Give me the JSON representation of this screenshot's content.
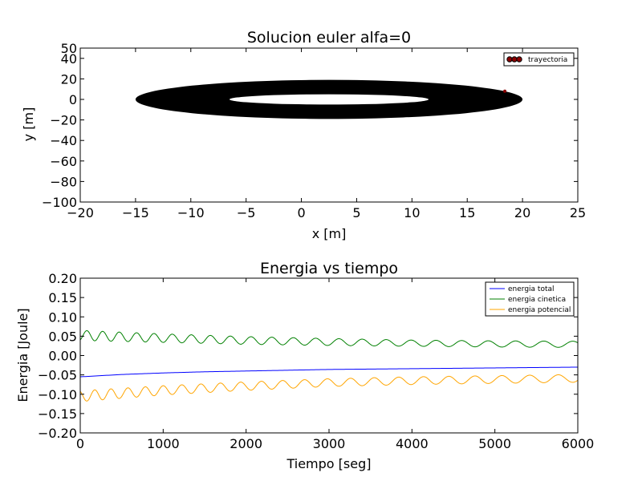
{
  "chart_data": [
    {
      "type": "scatter",
      "title": "Solucion euler alfa=0",
      "xlabel": "x [m]",
      "ylabel": "y [m]",
      "xlim": [
        -20,
        25
      ],
      "ylim": [
        -100,
        50
      ],
      "xticks": [
        -20,
        -15,
        -10,
        -5,
        0,
        5,
        10,
        15,
        20,
        25
      ],
      "yticks": [
        50,
        40,
        20,
        0,
        -20,
        -40,
        -60,
        -80,
        -100
      ],
      "xtick_labels": [
        "−20",
        "−15",
        "−10",
        "−5",
        "0",
        "5",
        "10",
        "15",
        "20",
        "25"
      ],
      "ytick_labels": [
        "50",
        "40",
        "20",
        "0",
        "−20",
        "−40",
        "−60",
        "−80",
        "−100"
      ],
      "legend": {
        "position": "top-right",
        "entries": [
          "trayectoria"
        ]
      },
      "series": [
        {
          "name": "trayectoria",
          "color": "#000000",
          "marker_color": "#8b0000",
          "band": {
            "center_x": 2.5,
            "outer_half_width_x": 17.5,
            "outer_half_height_y": 19,
            "inner_half_width_x": 9,
            "inner_half_height_y": 5
          },
          "highlight_point": {
            "x": 18.4,
            "y": 8
          }
        }
      ]
    },
    {
      "type": "line",
      "title": "Energia vs tiempo",
      "xlabel": "Tiempo [seg]",
      "ylabel": "Energia [Joule]",
      "xlim": [
        0,
        6000
      ],
      "ylim": [
        -0.2,
        0.2
      ],
      "xticks": [
        0,
        1000,
        2000,
        3000,
        4000,
        5000,
        6000
      ],
      "yticks": [
        0.2,
        0.15,
        0.1,
        0.05,
        0,
        -0.05,
        -0.1,
        -0.15,
        -0.2
      ],
      "xtick_labels": [
        "0",
        "1000",
        "2000",
        "3000",
        "4000",
        "5000",
        "6000"
      ],
      "ytick_labels": [
        "0.20",
        "0.15",
        "0.10",
        "0.05",
        "0.00",
        "−0.05",
        "−0.10",
        "−0.15",
        "−0.20"
      ],
      "legend": {
        "position": "top-right",
        "entries": [
          "energia total",
          "energia cinetica",
          "energia potencial"
        ]
      },
      "series": [
        {
          "name": "energia total",
          "color": "#0000ff",
          "x": [
            0,
            500,
            1000,
            1500,
            2000,
            2500,
            3000,
            3500,
            4000,
            4500,
            5000,
            5500,
            6000
          ],
          "values": [
            -0.055,
            -0.049,
            -0.045,
            -0.042,
            -0.04,
            -0.038,
            -0.036,
            -0.035,
            -0.034,
            -0.033,
            -0.032,
            -0.031,
            -0.03
          ]
        },
        {
          "name": "energia cinetica",
          "color": "#008000",
          "x": [
            0,
            1000,
            2000,
            3000,
            4000,
            5000,
            6000
          ],
          "values": [
            0.052,
            0.045,
            0.039,
            0.035,
            0.032,
            0.03,
            0.029
          ],
          "osc_amplitude": [
            0.013,
            0.011,
            0.01,
            0.009,
            0.008,
            0.008,
            0.008
          ],
          "peaks_x": [
            80,
            270,
            470,
            680,
            890,
            1110,
            1340,
            1570,
            1810,
            2060,
            2310,
            2570,
            2840,
            3120,
            3400,
            3690,
            3990,
            4290,
            4600,
            4920,
            5250,
            5590,
            5940
          ]
        },
        {
          "name": "energia potencial",
          "color": "#ffa500",
          "x": [
            0,
            1000,
            2000,
            3000,
            4000,
            5000,
            6000
          ],
          "values": [
            -0.105,
            -0.09,
            -0.079,
            -0.07,
            -0.065,
            -0.062,
            -0.059
          ],
          "osc_amplitude": [
            0.014,
            0.012,
            0.011,
            0.01,
            0.01,
            0.01,
            0.01
          ]
        }
      ]
    }
  ]
}
